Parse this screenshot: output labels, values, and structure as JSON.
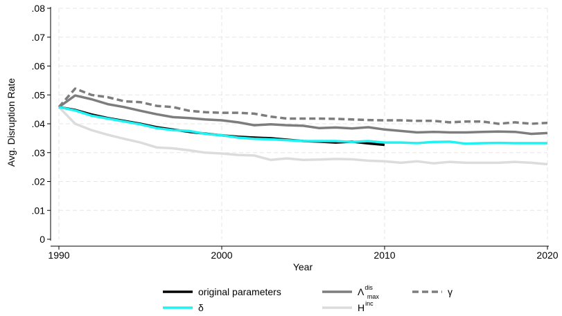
{
  "chart_data": {
    "type": "line",
    "title": "",
    "xlabel": "Year",
    "ylabel": "Avg. Disruption Rate",
    "xlim": [
      1990,
      2020
    ],
    "ylim": [
      0,
      0.08
    ],
    "grid": true,
    "legend_position": "bottom",
    "x_ticks": [
      1990,
      2000,
      2010,
      2020
    ],
    "x_tick_labels": [
      "1990",
      "2000",
      "2010",
      "2020"
    ],
    "y_ticks": [
      0,
      0.01,
      0.02,
      0.03,
      0.04,
      0.05,
      0.06,
      0.07,
      0.08
    ],
    "y_tick_labels": [
      "0",
      ".01",
      ".02",
      ".03",
      ".04",
      ".05",
      ".06",
      ".07",
      ".08"
    ],
    "series": [
      {
        "name": "original parameters",
        "color": "#000000",
        "dash": "solid",
        "x": [
          1990,
          1991,
          1992,
          1993,
          1994,
          1995,
          1996,
          1997,
          1998,
          1999,
          2000,
          2001,
          2002,
          2003,
          2004,
          2005,
          2006,
          2007,
          2008,
          2009,
          2010
        ],
        "y": [
          0.0458,
          0.0448,
          0.0432,
          0.042,
          0.041,
          0.04,
          0.0388,
          0.038,
          0.0372,
          0.0366,
          0.036,
          0.0355,
          0.0352,
          0.035,
          0.0345,
          0.034,
          0.0338,
          0.0335,
          0.0338,
          0.0332,
          0.0327
        ]
      },
      {
        "name": "δ",
        "color": "#1ff2f2",
        "dash": "solid",
        "x": [
          1990,
          1991,
          1992,
          1993,
          1994,
          1995,
          1996,
          1997,
          1998,
          1999,
          2000,
          2001,
          2002,
          2003,
          2004,
          2005,
          2006,
          2007,
          2008,
          2009,
          2010,
          2011,
          2012,
          2013,
          2014,
          2015,
          2016,
          2017,
          2018,
          2019,
          2020
        ],
        "y": [
          0.0458,
          0.0446,
          0.0428,
          0.0418,
          0.0408,
          0.0398,
          0.0385,
          0.0378,
          0.0375,
          0.0365,
          0.036,
          0.0352,
          0.0348,
          0.0346,
          0.0343,
          0.034,
          0.034,
          0.034,
          0.0337,
          0.034,
          0.0335,
          0.0335,
          0.0333,
          0.0337,
          0.0338,
          0.0331,
          0.0333,
          0.0334,
          0.0333,
          0.0333,
          0.0333
        ]
      },
      {
        "name": "Λ",
        "name_superscript": "dis",
        "name_subscript": "max",
        "color": "#7d7d7d",
        "dash": "solid",
        "x": [
          1990,
          1991,
          1992,
          1993,
          1994,
          1995,
          1996,
          1997,
          1998,
          1999,
          2000,
          2001,
          2002,
          2003,
          2004,
          2005,
          2006,
          2007,
          2008,
          2009,
          2010,
          2011,
          2012,
          2013,
          2014,
          2015,
          2016,
          2017,
          2018,
          2019,
          2020
        ],
        "y": [
          0.0458,
          0.0498,
          0.0485,
          0.0468,
          0.0458,
          0.0445,
          0.0433,
          0.0423,
          0.042,
          0.0415,
          0.0412,
          0.0405,
          0.0395,
          0.0398,
          0.0395,
          0.0393,
          0.0385,
          0.0387,
          0.0384,
          0.0388,
          0.038,
          0.0375,
          0.037,
          0.0372,
          0.037,
          0.037,
          0.0372,
          0.0373,
          0.0372,
          0.0365,
          0.0368
        ]
      },
      {
        "name": "H",
        "name_superscript": "inc",
        "color": "#dcdcdc",
        "dash": "solid",
        "x": [
          1990,
          1991,
          1992,
          1993,
          1994,
          1995,
          1996,
          1997,
          1998,
          1999,
          2000,
          2001,
          2002,
          2003,
          2004,
          2005,
          2006,
          2007,
          2008,
          2009,
          2010,
          2011,
          2012,
          2013,
          2014,
          2015,
          2016,
          2017,
          2018,
          2019,
          2020
        ],
        "y": [
          0.0458,
          0.04,
          0.0378,
          0.0362,
          0.0348,
          0.0335,
          0.0318,
          0.0315,
          0.0308,
          0.03,
          0.0297,
          0.0292,
          0.029,
          0.0275,
          0.028,
          0.0275,
          0.0276,
          0.0278,
          0.0277,
          0.0272,
          0.027,
          0.0265,
          0.027,
          0.0263,
          0.0268,
          0.0265,
          0.0265,
          0.0265,
          0.0268,
          0.0265,
          0.026
        ]
      },
      {
        "name": "γ",
        "color": "#7d7d7d",
        "dash": "dashed",
        "x": [
          1990,
          1991,
          1992,
          1993,
          1994,
          1995,
          1996,
          1997,
          1998,
          1999,
          2000,
          2001,
          2002,
          2003,
          2004,
          2005,
          2006,
          2007,
          2008,
          2009,
          2010,
          2011,
          2012,
          2013,
          2014,
          2015,
          2016,
          2017,
          2018,
          2019,
          2020
        ],
        "y": [
          0.0458,
          0.0522,
          0.05,
          0.0492,
          0.0478,
          0.0475,
          0.0462,
          0.0458,
          0.0445,
          0.044,
          0.0438,
          0.0438,
          0.0435,
          0.0425,
          0.0418,
          0.0418,
          0.0418,
          0.0417,
          0.0415,
          0.0413,
          0.0412,
          0.0412,
          0.041,
          0.041,
          0.0405,
          0.0408,
          0.0408,
          0.04,
          0.0405,
          0.04,
          0.0403
        ]
      }
    ]
  }
}
